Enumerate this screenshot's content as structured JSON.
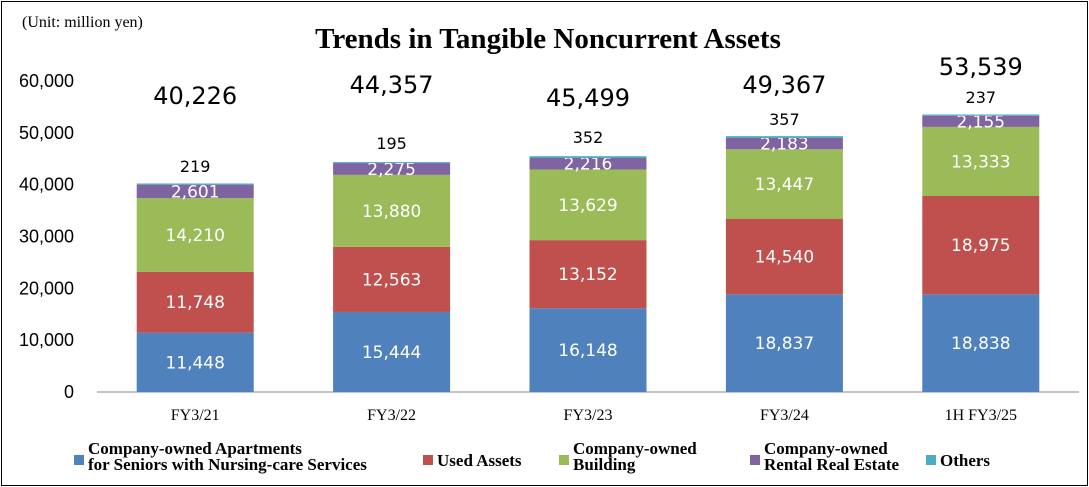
{
  "unit_note": "(Unit: million yen)",
  "chart_data": {
    "type": "bar",
    "stacked": true,
    "title": "Trends in Tangible Noncurrent Assets",
    "xlabel": "",
    "ylabel": "",
    "ylim": [
      0,
      60000
    ],
    "yticks": [
      0,
      10000,
      20000,
      30000,
      40000,
      50000,
      60000
    ],
    "ytick_labels": [
      "0",
      "10,000",
      "20,000",
      "30,000",
      "40,000",
      "50,000",
      "60,000"
    ],
    "categories": [
      "FY3/21",
      "FY3/22",
      "FY3/23",
      "FY3/24",
      "1H FY3/25"
    ],
    "totals": [
      40226,
      44357,
      45499,
      49367,
      53539
    ],
    "grid": false,
    "legend_position": "bottom",
    "series": [
      {
        "name": "Company-owned Apartments\nfor Seniors with Nursing-care Services",
        "color": "#4f81bd",
        "values": [
          11448,
          15444,
          16148,
          18837,
          18838
        ]
      },
      {
        "name": "Used Assets",
        "color": "#c0504d",
        "values": [
          11748,
          12563,
          13152,
          14540,
          18975
        ]
      },
      {
        "name": "Company-owned\nBuilding",
        "color": "#9bbb59",
        "values": [
          14210,
          13880,
          13629,
          13447,
          13333
        ]
      },
      {
        "name": "Company-owned\nRental Real Estate",
        "color": "#8064a2",
        "values": [
          2601,
          2275,
          2216,
          2183,
          2155
        ]
      },
      {
        "name": "Others",
        "color": "#4bacc6",
        "values": [
          219,
          195,
          352,
          357,
          237
        ]
      }
    ]
  }
}
